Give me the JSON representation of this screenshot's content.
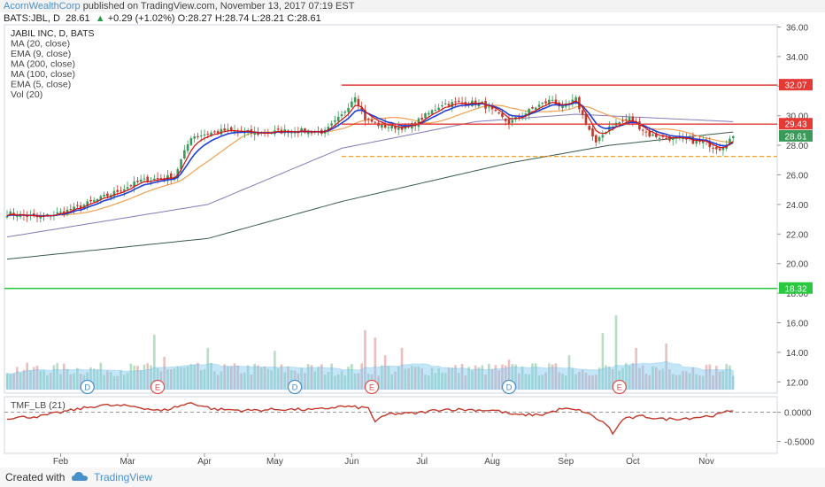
{
  "header": {
    "author": "AcornWealthCorp",
    "published_text": "published on TradingView.com, November 13, 2017 07:19 EST"
  },
  "quote": {
    "symbol": "BATS:JBL, D",
    "last": "28.61",
    "arrow": "▲",
    "change": "+0.29 (+1.02%)",
    "open": "O:28.27",
    "high": "H:28.74",
    "low": "L:28.21",
    "close": "C:28.61"
  },
  "legend": [
    "JABIL INC, D, BATS",
    "MA (20, close)",
    "EMA (9, close)",
    "MA (200, close)",
    "MA (100, close)",
    "EMA (5, close)",
    "Vol (20)"
  ],
  "footer": {
    "created_with": "Created with",
    "brand": "TradingView"
  },
  "colors": {
    "up_candle": "#3a9a5a",
    "down_candle": "#c0392b",
    "ema9": "#1f3fd6",
    "ema5": "#d01010",
    "ma20": "#f0a050",
    "ma100": "#8878b8",
    "ma200": "#3a5a4a",
    "level_red": "#e53935",
    "level_green": "#27c93f",
    "level_orange": "#f0a030",
    "tmf": "#c0392b",
    "vol_avg": "#7ec8f0"
  },
  "chart_data": [
    {
      "type": "candlestick",
      "title": "JABIL INC, D, BATS",
      "x_labels": [
        "Feb",
        "Mar",
        "Apr",
        "May",
        "Jun",
        "Jul",
        "Aug",
        "Sep",
        "Oct",
        "Nov"
      ],
      "y_ticks": [
        "36.00",
        "34.00",
        "32.00",
        "30.00",
        "28.00",
        "26.00",
        "24.00",
        "22.00",
        "20.00",
        "18.00",
        "16.00",
        "14.00",
        "12.00"
      ],
      "ylim": [
        11.4,
        36.2
      ],
      "num_bars": 218,
      "ohlc_anchors": [
        [
          0,
          23.4
        ],
        [
          10,
          23.1
        ],
        [
          20,
          23.7
        ],
        [
          30,
          24.6
        ],
        [
          40,
          25.6
        ],
        [
          50,
          25.9
        ],
        [
          55,
          28.6
        ],
        [
          65,
          29.0
        ],
        [
          75,
          28.8
        ],
        [
          85,
          29.0
        ],
        [
          95,
          28.9
        ],
        [
          100,
          30.0
        ],
        [
          104,
          31.4
        ],
        [
          107,
          29.8
        ],
        [
          112,
          29.3
        ],
        [
          120,
          29.2
        ],
        [
          130,
          30.8
        ],
        [
          138,
          30.9
        ],
        [
          142,
          30.8
        ],
        [
          150,
          29.5
        ],
        [
          158,
          30.6
        ],
        [
          163,
          31.1
        ],
        [
          166,
          30.5
        ],
        [
          170,
          31.1
        ],
        [
          172,
          30.0
        ],
        [
          176,
          28.1
        ],
        [
          180,
          29.3
        ],
        [
          186,
          29.8
        ],
        [
          192,
          28.7
        ],
        [
          200,
          28.4
        ],
        [
          208,
          28.2
        ],
        [
          213,
          27.8
        ],
        [
          217,
          28.61
        ]
      ],
      "overlays": {
        "ema5_desc": "EMA (5, close)",
        "ema9_desc": "EMA (9, close)",
        "ma20_desc": "MA (20, close)",
        "ma100_anchors": [
          [
            0,
            21.8
          ],
          [
            60,
            24.0
          ],
          [
            100,
            27.8
          ],
          [
            140,
            29.6
          ],
          [
            170,
            30.1
          ],
          [
            217,
            29.6
          ]
        ],
        "ma200_anchors": [
          [
            0,
            20.3
          ],
          [
            60,
            21.7
          ],
          [
            100,
            24.2
          ],
          [
            150,
            26.8
          ],
          [
            180,
            28.0
          ],
          [
            217,
            28.9
          ]
        ]
      },
      "levels": [
        {
          "value": 32.07,
          "label": "32.07",
          "style": "solid",
          "color_key": "level_red",
          "from_bar": 100
        },
        {
          "value": 29.43,
          "label": "29.43",
          "style": "solid",
          "color_key": "level_red",
          "from_bar": 100
        },
        {
          "value": 27.25,
          "label": "",
          "style": "dashed",
          "color_key": "level_orange",
          "from_bar": 100
        },
        {
          "value": 18.32,
          "label": "18.32",
          "style": "solid",
          "color_key": "level_green",
          "from_bar": 0
        }
      ],
      "last_price_label": "28.61",
      "event_markers": [
        {
          "bar": 24,
          "label": "D",
          "type": "dividend"
        },
        {
          "bar": 45,
          "label": "E",
          "type": "earnings"
        },
        {
          "bar": 86,
          "label": "D",
          "type": "dividend"
        },
        {
          "bar": 109,
          "label": "E",
          "type": "earnings"
        },
        {
          "bar": 150,
          "label": "D",
          "type": "dividend"
        },
        {
          "bar": 183,
          "label": "E",
          "type": "earnings"
        }
      ],
      "volume": {
        "label": "Vol (20)",
        "spikes": [
          [
            44,
            2.7
          ],
          [
            47,
            1.2
          ],
          [
            60,
            1.8
          ],
          [
            80,
            1.6
          ],
          [
            107,
            3.0
          ],
          [
            110,
            2.5
          ],
          [
            113,
            1.3
          ],
          [
            118,
            1.8
          ],
          [
            150,
            1.0
          ],
          [
            168,
            1.3
          ],
          [
            178,
            2.8
          ],
          [
            182,
            4.0
          ],
          [
            188,
            1.8
          ],
          [
            197,
            2.1
          ]
        ]
      }
    },
    {
      "type": "line",
      "title": "TMF_LB (21)",
      "y_ticks": [
        "0.0000",
        "-0.5000"
      ],
      "ylim": [
        -0.85,
        0.35
      ],
      "zero_line": "dashed",
      "values_anchors": [
        [
          0,
          -0.1
        ],
        [
          10,
          -0.07
        ],
        [
          18,
          0.02
        ],
        [
          28,
          0.12
        ],
        [
          38,
          0.1
        ],
        [
          46,
          0.02
        ],
        [
          55,
          0.16
        ],
        [
          62,
          0.05
        ],
        [
          72,
          0.03
        ],
        [
          82,
          0.05
        ],
        [
          92,
          0.04
        ],
        [
          100,
          0.1
        ],
        [
          108,
          0.07
        ],
        [
          110,
          -0.16
        ],
        [
          114,
          -0.03
        ],
        [
          122,
          -0.02
        ],
        [
          130,
          0.05
        ],
        [
          140,
          0.04
        ],
        [
          146,
          0.03
        ],
        [
          152,
          -0.05
        ],
        [
          160,
          -0.04
        ],
        [
          166,
          0.06
        ],
        [
          172,
          0.02
        ],
        [
          176,
          -0.1
        ],
        [
          180,
          -0.25
        ],
        [
          181,
          -0.38
        ],
        [
          184,
          -0.12
        ],
        [
          190,
          -0.07
        ],
        [
          196,
          -0.12
        ],
        [
          204,
          -0.1
        ],
        [
          212,
          -0.05
        ],
        [
          217,
          0.04
        ]
      ]
    }
  ]
}
